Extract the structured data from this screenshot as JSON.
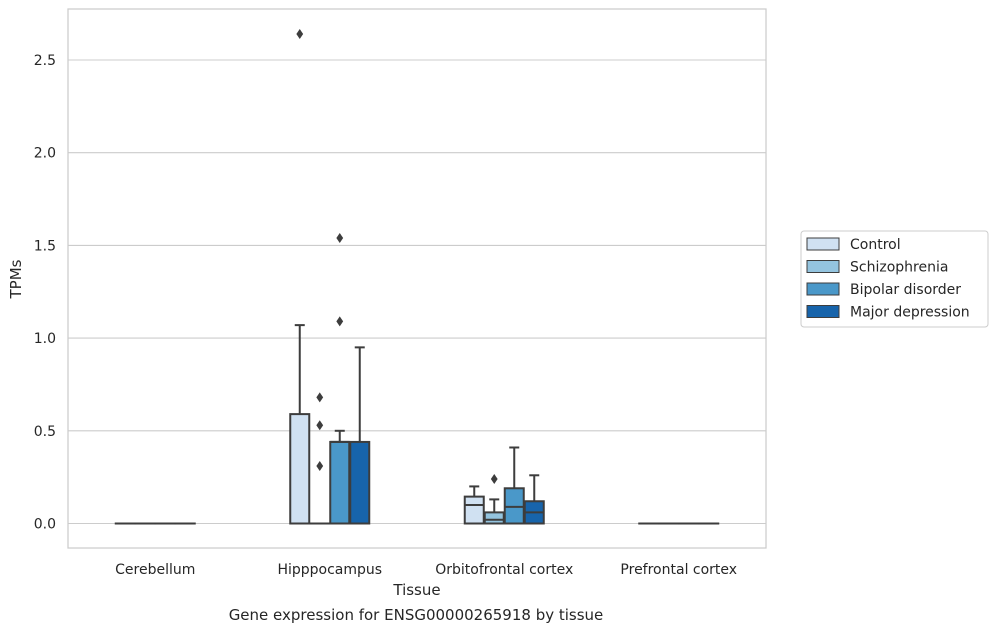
{
  "caption": "Gene expression for ENSG00000265918 by tissue",
  "chart_data": {
    "type": "box",
    "xlabel": "Tissue",
    "ylabel": "TPMs",
    "ylim": [
      -0.13,
      2.78
    ],
    "yticks": [
      0.0,
      0.5,
      1.0,
      1.5,
      2.0,
      2.5
    ],
    "ytick_labels": [
      "0.0",
      "0.5",
      "1.0",
      "1.5",
      "2.0",
      "2.5"
    ],
    "grid": "horizontal",
    "legend_position": "right",
    "categories": [
      "Cerebellum",
      "Hipppocampus",
      "Orbitofrontal cortex",
      "Prefrontal cortex"
    ],
    "series": [
      {
        "name": "Control",
        "color": "#d0e1f2",
        "boxes": [
          {
            "q1": 0,
            "median": 0,
            "q3": 0,
            "whisker_low": 0,
            "whisker_high": 0,
            "outliers": []
          },
          {
            "q1": 0,
            "median": 0,
            "q3": 0.59,
            "whisker_low": 0,
            "whisker_high": 1.07,
            "outliers": [
              2.64
            ]
          },
          {
            "q1": 0,
            "median": 0.1,
            "q3": 0.145,
            "whisker_low": 0,
            "whisker_high": 0.2,
            "outliers": []
          },
          {
            "q1": 0,
            "median": 0,
            "q3": 0,
            "whisker_low": 0,
            "whisker_high": 0,
            "outliers": []
          }
        ]
      },
      {
        "name": "Schizophrenia",
        "color": "#94c4df",
        "boxes": [
          {
            "q1": 0,
            "median": 0,
            "q3": 0,
            "whisker_low": 0,
            "whisker_high": 0,
            "outliers": []
          },
          {
            "q1": 0,
            "median": 0,
            "q3": 0,
            "whisker_low": 0,
            "whisker_high": 0,
            "outliers": [
              0.31,
              0.53,
              0.68
            ]
          },
          {
            "q1": 0,
            "median": 0.02,
            "q3": 0.06,
            "whisker_low": 0,
            "whisker_high": 0.13,
            "outliers": [
              0.24
            ]
          },
          {
            "q1": 0,
            "median": 0,
            "q3": 0,
            "whisker_low": 0,
            "whisker_high": 0,
            "outliers": []
          }
        ]
      },
      {
        "name": "Bipolar disorder",
        "color": "#4a98c9",
        "boxes": [
          {
            "q1": 0,
            "median": 0,
            "q3": 0,
            "whisker_low": 0,
            "whisker_high": 0,
            "outliers": []
          },
          {
            "q1": 0,
            "median": 0.44,
            "q3": 0.44,
            "whisker_low": 0,
            "whisker_high": 0.5,
            "outliers": [
              1.09,
              1.54
            ]
          },
          {
            "q1": 0,
            "median": 0.09,
            "q3": 0.19,
            "whisker_low": 0,
            "whisker_high": 0.41,
            "outliers": []
          },
          {
            "q1": 0,
            "median": 0,
            "q3": 0,
            "whisker_low": 0,
            "whisker_high": 0,
            "outliers": []
          }
        ]
      },
      {
        "name": "Major depression",
        "color": "#1764ab",
        "boxes": [
          {
            "q1": 0,
            "median": 0,
            "q3": 0,
            "whisker_low": 0,
            "whisker_high": 0,
            "outliers": []
          },
          {
            "q1": 0,
            "median": 0,
            "q3": 0.44,
            "whisker_low": 0,
            "whisker_high": 0.95,
            "outliers": []
          },
          {
            "q1": 0,
            "median": 0.06,
            "q3": 0.12,
            "whisker_low": 0,
            "whisker_high": 0.26,
            "outliers": []
          },
          {
            "q1": 0,
            "median": 0,
            "q3": 0,
            "whisker_low": 0,
            "whisker_high": 0,
            "outliers": []
          }
        ]
      }
    ]
  }
}
